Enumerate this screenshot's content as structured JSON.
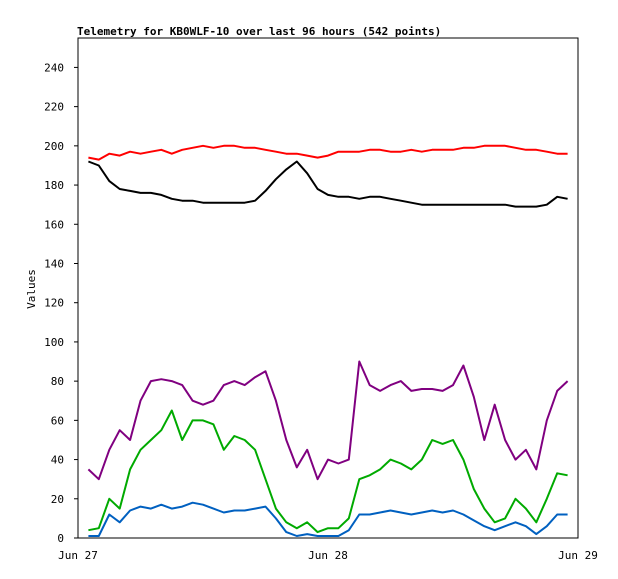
{
  "chart_data": {
    "type": "line",
    "title": "Telemetry for KB0WLF-10 over last 96 hours (542 points)",
    "xlabel": "",
    "ylabel": "Values",
    "ylim": [
      0,
      255
    ],
    "yticks": [
      0,
      20,
      40,
      60,
      80,
      100,
      120,
      140,
      160,
      180,
      200,
      220,
      240
    ],
    "xlim": [
      0,
      96
    ],
    "xticks": [
      {
        "label": "Jun 27",
        "x": 0
      },
      {
        "label": "Jun 28",
        "x": 48
      },
      {
        "label": "Jun 29",
        "x": 96
      }
    ],
    "x_unit": "hours",
    "grid": false,
    "legend": "none",
    "series": [
      {
        "color": "#ff0000",
        "x": [
          2,
          4,
          6,
          8,
          10,
          12,
          14,
          16,
          18,
          20,
          22,
          24,
          26,
          28,
          30,
          32,
          34,
          36,
          38,
          40,
          42,
          44,
          46,
          48,
          50,
          52,
          54,
          56,
          58,
          60,
          62,
          64,
          66,
          68,
          70,
          72,
          74,
          76,
          78,
          80,
          82,
          84,
          86,
          88,
          90,
          92,
          94
        ],
        "values": [
          194,
          193,
          196,
          195,
          197,
          196,
          197,
          198,
          196,
          198,
          199,
          200,
          199,
          200,
          200,
          199,
          199,
          198,
          197,
          196,
          196,
          195,
          194,
          195,
          197,
          197,
          197,
          198,
          198,
          197,
          197,
          198,
          197,
          198,
          198,
          198,
          199,
          199,
          200,
          200,
          200,
          199,
          198,
          198,
          197,
          196,
          196
        ]
      },
      {
        "color": "#000000",
        "x": [
          2,
          4,
          6,
          8,
          10,
          12,
          14,
          16,
          18,
          20,
          22,
          24,
          26,
          28,
          30,
          32,
          34,
          36,
          38,
          40,
          42,
          44,
          46,
          48,
          50,
          52,
          54,
          56,
          58,
          60,
          62,
          64,
          66,
          68,
          70,
          72,
          74,
          76,
          78,
          80,
          82,
          84,
          86,
          88,
          90,
          92,
          94
        ],
        "values": [
          192,
          190,
          182,
          178,
          177,
          176,
          176,
          175,
          173,
          172,
          172,
          171,
          171,
          171,
          171,
          171,
          172,
          177,
          183,
          188,
          192,
          186,
          178,
          175,
          174,
          174,
          173,
          174,
          174,
          173,
          172,
          171,
          170,
          170,
          170,
          170,
          170,
          170,
          170,
          170,
          170,
          169,
          169,
          169,
          170,
          174,
          173
        ]
      },
      {
        "color": "#800080",
        "x": [
          2,
          4,
          6,
          8,
          10,
          12,
          14,
          16,
          18,
          20,
          22,
          24,
          26,
          28,
          30,
          32,
          34,
          36,
          38,
          40,
          42,
          44,
          46,
          48,
          50,
          52,
          54,
          56,
          58,
          60,
          62,
          64,
          66,
          68,
          70,
          72,
          74,
          76,
          78,
          80,
          82,
          84,
          86,
          88,
          90,
          92,
          94
        ],
        "values": [
          35,
          30,
          45,
          55,
          50,
          70,
          80,
          81,
          80,
          78,
          70,
          68,
          70,
          78,
          80,
          78,
          82,
          85,
          70,
          50,
          36,
          45,
          30,
          40,
          38,
          40,
          90,
          78,
          75,
          78,
          80,
          75,
          76,
          76,
          75,
          78,
          88,
          72,
          50,
          68,
          50,
          40,
          45,
          35,
          60,
          75,
          80
        ]
      },
      {
        "color": "#00aa00",
        "x": [
          2,
          4,
          6,
          8,
          10,
          12,
          14,
          16,
          18,
          20,
          22,
          24,
          26,
          28,
          30,
          32,
          34,
          36,
          38,
          40,
          42,
          44,
          46,
          48,
          50,
          52,
          54,
          56,
          58,
          60,
          62,
          64,
          66,
          68,
          70,
          72,
          74,
          76,
          78,
          80,
          82,
          84,
          86,
          88,
          90,
          92,
          94
        ],
        "values": [
          4,
          5,
          20,
          15,
          35,
          45,
          50,
          55,
          65,
          50,
          60,
          60,
          58,
          45,
          52,
          50,
          45,
          30,
          15,
          8,
          5,
          8,
          3,
          5,
          5,
          10,
          30,
          32,
          35,
          40,
          38,
          35,
          40,
          50,
          48,
          50,
          40,
          25,
          15,
          8,
          10,
          20,
          15,
          8,
          20,
          33,
          32
        ]
      },
      {
        "color": "#0060c0",
        "x": [
          2,
          4,
          6,
          8,
          10,
          12,
          14,
          16,
          18,
          20,
          22,
          24,
          26,
          28,
          30,
          32,
          34,
          36,
          38,
          40,
          42,
          44,
          46,
          48,
          50,
          52,
          54,
          56,
          58,
          60,
          62,
          64,
          66,
          68,
          70,
          72,
          74,
          76,
          78,
          80,
          82,
          84,
          86,
          88,
          90,
          92,
          94
        ],
        "values": [
          1,
          1,
          12,
          8,
          14,
          16,
          15,
          17,
          15,
          16,
          18,
          17,
          15,
          13,
          14,
          14,
          15,
          16,
          10,
          3,
          1,
          2,
          1,
          1,
          1,
          4,
          12,
          12,
          13,
          14,
          13,
          12,
          13,
          14,
          13,
          14,
          12,
          9,
          6,
          4,
          6,
          8,
          6,
          2,
          6,
          12,
          12
        ]
      }
    ]
  }
}
